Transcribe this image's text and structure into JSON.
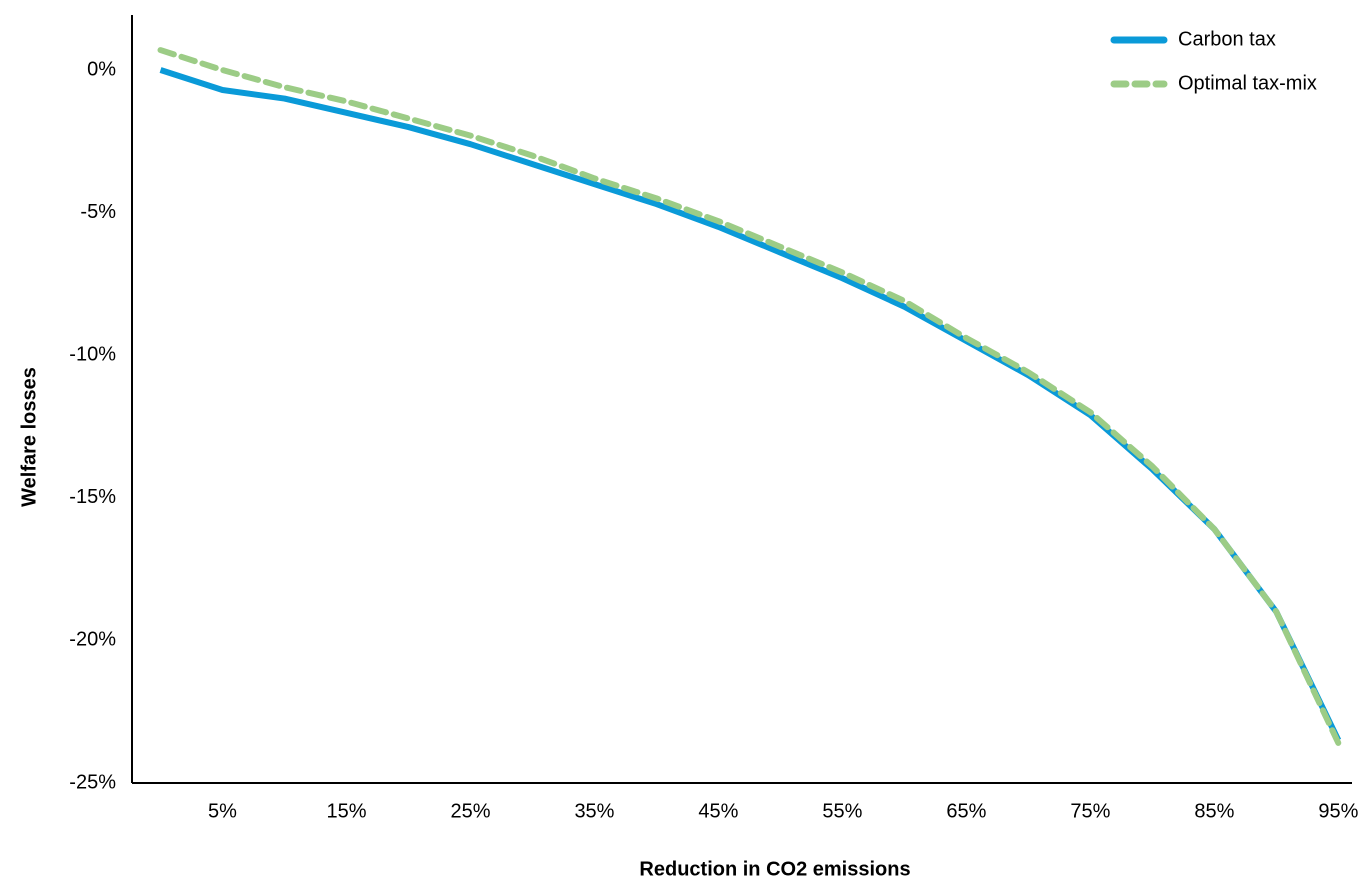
{
  "chart_data": {
    "type": "line",
    "x_label": "Reduction in CO2 emissions",
    "y_label": "Welfare losses",
    "x": [
      0,
      5,
      10,
      15,
      20,
      25,
      30,
      35,
      40,
      45,
      50,
      55,
      60,
      65,
      70,
      75,
      80,
      85,
      90,
      95
    ],
    "series": [
      {
        "name": "Carbon tax",
        "color": "#0a9ad8",
        "dash": false,
        "values": [
          0,
          -0.7,
          -1.0,
          -1.5,
          -2.0,
          -2.6,
          -3.3,
          -4.0,
          -4.7,
          -5.5,
          -6.4,
          -7.3,
          -8.3,
          -9.5,
          -10.7,
          -12.1,
          -14.0,
          -16.1,
          -19.0,
          -23.5
        ]
      },
      {
        "name": "Optimal tax-mix",
        "color": "#9ccc86",
        "dash": true,
        "values": [
          0.7,
          0.0,
          -0.6,
          -1.1,
          -1.7,
          -2.3,
          -3.0,
          -3.8,
          -4.5,
          -5.3,
          -6.2,
          -7.1,
          -8.1,
          -9.4,
          -10.6,
          -12.0,
          -13.9,
          -16.1,
          -19.0,
          -23.6
        ]
      }
    ],
    "xlim": [
      -2.3,
      96.1
    ],
    "xticks": [
      {
        "value": 5,
        "label": "5%"
      },
      {
        "value": 15,
        "label": "15%"
      },
      {
        "value": 25,
        "label": "25%"
      },
      {
        "value": 35,
        "label": "35%"
      },
      {
        "value": 45,
        "label": "45%"
      },
      {
        "value": 55,
        "label": "55%"
      },
      {
        "value": 65,
        "label": "65%"
      },
      {
        "value": 75,
        "label": "75%"
      },
      {
        "value": 85,
        "label": "85%"
      },
      {
        "value": 95,
        "label": "95%"
      }
    ],
    "ylim": [
      -25,
      1.93
    ],
    "yticks": [
      {
        "value": 0,
        "label": "0%"
      },
      {
        "value": -5,
        "label": "-5%"
      },
      {
        "value": -10,
        "label": "-10%"
      },
      {
        "value": -15,
        "label": "-15%"
      },
      {
        "value": -20,
        "label": "-20%"
      },
      {
        "value": -25,
        "label": "-25%"
      }
    ],
    "grid": false,
    "legend": "top-right"
  }
}
